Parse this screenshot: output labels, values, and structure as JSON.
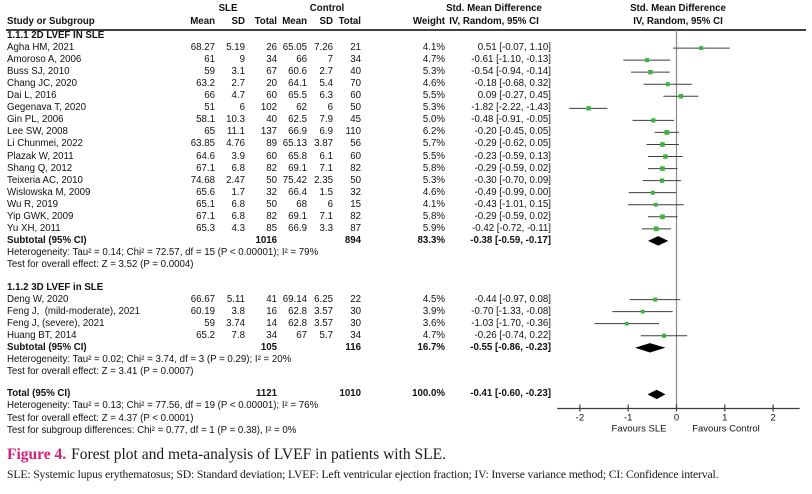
{
  "table_header": {
    "group1": "SLE",
    "group2": "Control",
    "study": "Study or Subgroup",
    "mean": "Mean",
    "sd": "SD",
    "total": "Total",
    "weight": "Weight",
    "effect_title": "Std. Mean Difference",
    "effect_sub": "IV, Random, 95% CI"
  },
  "figure": {
    "caption_label": "Figure 4.",
    "caption_text": "Forest plot and meta-analysis of LVEF in patients with SLE.",
    "caption_label_color": "#d2217d",
    "footnote": "SLE: Systemic lupus erythematosus; SD: Standard deviation; LVEF: Left ventricular ejection fraction; IV: Inverse variance method; CI: Confidence interval."
  },
  "chart_data": {
    "type": "forest",
    "title": "Forest plot and meta-analysis of LVEF in patients with SLE",
    "x_ticks": [
      -2,
      -1,
      0,
      1,
      2
    ],
    "xlim": [
      -2.47,
      2.55
    ],
    "axis_label_left": "Favours SLE",
    "axis_label_right": "Favours Control",
    "marker_color": "#3cb43c",
    "sections": [
      {
        "title": "1.1.1 2D LVEF IN SLE",
        "studies": [
          {
            "name": "Agha HM, 2021",
            "mean1": "68.27",
            "sd1": "5.19",
            "n1": "26",
            "mean2": "65.05",
            "sd2": "7.26",
            "n2": "21",
            "weight": "4.1%",
            "est": 0.51,
            "lo": -0.07,
            "hi": 1.1,
            "ci_text": "0.51 [-0.07, 1.10]"
          },
          {
            "name": "Amoroso A, 2006",
            "mean1": "61",
            "sd1": "9",
            "n1": "34",
            "mean2": "66",
            "sd2": "7",
            "n2": "34",
            "weight": "4.7%",
            "est": -0.61,
            "lo": -1.1,
            "hi": -0.13,
            "ci_text": "-0.61 [-1.10, -0.13]"
          },
          {
            "name": "Buss SJ, 2010",
            "mean1": "59",
            "sd1": "3.1",
            "n1": "67",
            "mean2": "60.6",
            "sd2": "2.7",
            "n2": "40",
            "weight": "5.3%",
            "est": -0.54,
            "lo": -0.94,
            "hi": -0.14,
            "ci_text": "-0.54 [-0.94, -0.14]"
          },
          {
            "name": "Chang JC, 2020",
            "mean1": "63.2",
            "sd1": "2.7",
            "n1": "20",
            "mean2": "64.1",
            "sd2": "5.4",
            "n2": "70",
            "weight": "4.6%",
            "est": -0.18,
            "lo": -0.68,
            "hi": 0.32,
            "ci_text": "-0.18 [-0.68, 0.32]"
          },
          {
            "name": "Dai L, 2016",
            "mean1": "66",
            "sd1": "4.7",
            "n1": "60",
            "mean2": "65.5",
            "sd2": "6.3",
            "n2": "60",
            "weight": "5.5%",
            "est": 0.09,
            "lo": -0.27,
            "hi": 0.45,
            "ci_text": "0.09 [-0.27, 0.45]"
          },
          {
            "name": "Gegenava T, 2020",
            "mean1": "51",
            "sd1": "6",
            "n1": "102",
            "mean2": "62",
            "sd2": "6",
            "n2": "50",
            "weight": "5.3%",
            "est": -1.82,
            "lo": -2.22,
            "hi": -1.43,
            "ci_text": "-1.82 [-2.22, -1.43]"
          },
          {
            "name": "Gin PL, 2006",
            "mean1": "58.1",
            "sd1": "10.3",
            "n1": "40",
            "mean2": "62.5",
            "sd2": "7.9",
            "n2": "45",
            "weight": "5.0%",
            "est": -0.48,
            "lo": -0.91,
            "hi": -0.05,
            "ci_text": "-0.48 [-0.91, -0.05]"
          },
          {
            "name": "Lee SW, 2008",
            "mean1": "65",
            "sd1": "11.1",
            "n1": "137",
            "mean2": "66.9",
            "sd2": "6.9",
            "n2": "110",
            "weight": "6.2%",
            "est": -0.2,
            "lo": -0.45,
            "hi": 0.05,
            "ci_text": "-0.20 [-0.45, 0.05]"
          },
          {
            "name": "Li Chunmei, 2022",
            "mean1": "63.85",
            "sd1": "4.76",
            "n1": "89",
            "mean2": "65.13",
            "sd2": "3.87",
            "n2": "56",
            "weight": "5.7%",
            "est": -0.29,
            "lo": -0.62,
            "hi": 0.05,
            "ci_text": "-0.29 [-0.62, 0.05]"
          },
          {
            "name": "Plazak W, 2011",
            "mean1": "64.6",
            "sd1": "3.9",
            "n1": "60",
            "mean2": "65.8",
            "sd2": "6.1",
            "n2": "60",
            "weight": "5.5%",
            "est": -0.23,
            "lo": -0.59,
            "hi": 0.13,
            "ci_text": "-0.23 [-0.59, 0.13]"
          },
          {
            "name": "Shang Q, 2012",
            "mean1": "67.1",
            "sd1": "6.8",
            "n1": "82",
            "mean2": "69.1",
            "sd2": "7.1",
            "n2": "82",
            "weight": "5.8%",
            "est": -0.29,
            "lo": -0.59,
            "hi": 0.02,
            "ci_text": "-0.29 [-0.59, 0.02]"
          },
          {
            "name": "Teixeria AC, 2010",
            "mean1": "74.68",
            "sd1": "2.47",
            "n1": "50",
            "mean2": "75.42",
            "sd2": "2.35",
            "n2": "50",
            "weight": "5.3%",
            "est": -0.3,
            "lo": -0.7,
            "hi": 0.09,
            "ci_text": "-0.30 [-0.70, 0.09]"
          },
          {
            "name": "Wislowska M, 2009",
            "mean1": "65.6",
            "sd1": "1.7",
            "n1": "32",
            "mean2": "66.4",
            "sd2": "1.5",
            "n2": "32",
            "weight": "4.6%",
            "est": -0.49,
            "lo": -0.99,
            "hi": 0.0,
            "ci_text": "-0.49 [-0.99, 0.00]"
          },
          {
            "name": "Wu R, 2019",
            "mean1": "65.1",
            "sd1": "6.8",
            "n1": "50",
            "mean2": "68",
            "sd2": "6",
            "n2": "15",
            "weight": "4.1%",
            "est": -0.43,
            "lo": -1.01,
            "hi": 0.15,
            "ci_text": "-0.43 [-1.01, 0.15]"
          },
          {
            "name": "Yip GWK, 2009",
            "mean1": "67.1",
            "sd1": "6.8",
            "n1": "82",
            "mean2": "69.1",
            "sd2": "7.1",
            "n2": "82",
            "weight": "5.8%",
            "est": -0.29,
            "lo": -0.59,
            "hi": 0.02,
            "ci_text": "-0.29 [-0.59, 0.02]"
          },
          {
            "name": "Yu XH, 2011",
            "mean1": "65.3",
            "sd1": "4.3",
            "n1": "85",
            "mean2": "66.9",
            "sd2": "3.3",
            "n2": "87",
            "weight": "5.9%",
            "est": -0.42,
            "lo": -0.72,
            "hi": -0.11,
            "ci_text": "-0.42 [-0.72, -0.11]"
          }
        ],
        "subtotal": {
          "label": "Subtotal (95% CI)",
          "n1": "1016",
          "n2": "894",
          "weight": "83.3%",
          "est": -0.38,
          "lo": -0.59,
          "hi": -0.17,
          "ci_text": "-0.38 [-0.59, -0.17]"
        },
        "notes": [
          "Heterogeneity: Tau² = 0.14; Chi² = 72.57, df = 15 (P < 0.00001); I² = 79%",
          "Test for overall effect: Z = 3.52 (P = 0.0004)"
        ]
      },
      {
        "title": "1.1.2 3D LVEF in SLE",
        "studies": [
          {
            "name": "Deng W, 2020",
            "mean1": "66.67",
            "sd1": "5.11",
            "n1": "41",
            "mean2": "69.14",
            "sd2": "6.25",
            "n2": "22",
            "weight": "4.5%",
            "est": -0.44,
            "lo": -0.97,
            "hi": 0.08,
            "ci_text": "-0.44 [-0.97, 0.08]"
          },
          {
            "name": "Feng J,  (mild-moderate), 2021",
            "mean1": "60.19",
            "sd1": "3.8",
            "n1": "16",
            "mean2": "62.8",
            "sd2": "3.57",
            "n2": "30",
            "weight": "3.9%",
            "est": -0.7,
            "lo": -1.33,
            "hi": -0.08,
            "ci_text": "-0.70 [-1.33, -0.08]"
          },
          {
            "name": "Feng J, (severe), 2021",
            "mean1": "59",
            "sd1": "3.74",
            "n1": "14",
            "mean2": "62.8",
            "sd2": "3.57",
            "n2": "30",
            "weight": "3.6%",
            "est": -1.03,
            "lo": -1.7,
            "hi": -0.36,
            "ci_text": "-1.03 [-1.70, -0.36]"
          },
          {
            "name": "Huang BT, 2014",
            "mean1": "65.2",
            "sd1": "7.8",
            "n1": "34",
            "mean2": "67",
            "sd2": "5.7",
            "n2": "34",
            "weight": "4.7%",
            "est": -0.26,
            "lo": -0.74,
            "hi": 0.22,
            "ci_text": "-0.26 [-0.74, 0.22]"
          }
        ],
        "subtotal": {
          "label": "Subtotal (95% CI)",
          "n1": "105",
          "n2": "116",
          "weight": "16.7%",
          "est": -0.55,
          "lo": -0.86,
          "hi": -0.23,
          "ci_text": "-0.55 [-0.86, -0.23]"
        },
        "notes": [
          "Heterogeneity: Tau² = 0.02; Chi² = 3.74, df = 3 (P = 0.29); I² = 20%",
          "Test for overall effect: Z = 3.41 (P = 0.0007)"
        ]
      }
    ],
    "total": {
      "label": "Total (95% CI)",
      "n1": "1121",
      "n2": "1010",
      "weight": "100.0%",
      "est": -0.41,
      "lo": -0.6,
      "hi": -0.23,
      "ci_text": "-0.41 [-0.60, -0.23]"
    },
    "total_notes": [
      "Heterogeneity: Tau² = 0.13; Chi² = 77.56, df = 19 (P < 0.00001); I² = 76%",
      "Test for overall effect: Z = 4.37 (P < 0.0001)",
      "Test for subgroup differences: Chi² = 0.77, df = 1 (P = 0.38), I² = 0%"
    ]
  }
}
